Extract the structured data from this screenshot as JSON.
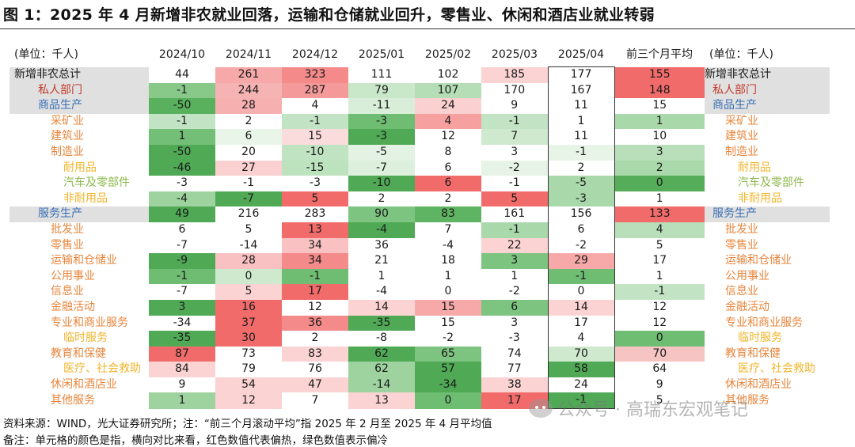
{
  "title": "图 1：2025 年 4 月新增非农就业回落，运输和仓储就业回升，零售业、休闲和酒店业就业转弱",
  "unit_label": "(单位：千人)",
  "columns": [
    "2024/10",
    "2024/11",
    "2024/12",
    "2025/01",
    "2025/02",
    "2025/03",
    "2025/04",
    "前三个月平均"
  ],
  "rows": [
    {
      "label": "新增非农总计",
      "level": 0,
      "color": "black",
      "gray": true,
      "values": [
        "44",
        "261",
        "323",
        "111",
        "102",
        "185",
        "177",
        "155"
      ],
      "cells": [
        "#ffffff",
        "#f7a9a9",
        "#f48a8a",
        "#ffffff",
        "#ffffff",
        "#fbd3d3",
        "#ffffff",
        "#f26b6b"
      ]
    },
    {
      "label": "私人部门",
      "level": 1,
      "color": "red",
      "gray": true,
      "values": [
        "-1",
        "244",
        "287",
        "79",
        "107",
        "170",
        "167",
        "148"
      ],
      "cells": [
        "#88c98a",
        "#f6b3b3",
        "#f59a9a",
        "#c9e7c9",
        "#b5deb6",
        "#ffffff",
        "#ffffff",
        "#f26b6b"
      ]
    },
    {
      "label": "商品生产",
      "level": 1,
      "color": "blue",
      "gray": true,
      "values": [
        "-50",
        "28",
        "4",
        "-11",
        "24",
        "9",
        "11",
        "15"
      ],
      "cells": [
        "#59b15d",
        "#f7b0b0",
        "#ffffff",
        "#d8eed8",
        "#fbd0d0",
        "#ffffff",
        "#ffffff",
        "#ffffff"
      ]
    },
    {
      "label": "采矿业",
      "level": 2,
      "color": "orange",
      "gray": false,
      "values": [
        "-1",
        "2",
        "-1",
        "-3",
        "4",
        "-1",
        "1",
        "1"
      ],
      "cells": [
        "#c3e4c4",
        "#ffffff",
        "#c3e4c4",
        "#6fbd73",
        "#f7a0a0",
        "#c3e4c4",
        "#ffffff",
        "#a9d8aa"
      ]
    },
    {
      "label": "建筑业",
      "level": 2,
      "color": "orange",
      "gray": false,
      "values": [
        "1",
        "6",
        "15",
        "-3",
        "12",
        "7",
        "11",
        "10"
      ],
      "cells": [
        "#74bf77",
        "#eaf5ea",
        "#fbdcdc",
        "#4fa955",
        "#ffffff",
        "#cfe9cf",
        "#ffffff",
        "#ffffff"
      ]
    },
    {
      "label": "制造业",
      "level": 2,
      "color": "orange",
      "gray": false,
      "values": [
        "-50",
        "20",
        "-10",
        "-5",
        "8",
        "3",
        "-1",
        "3"
      ],
      "cells": [
        "#4fa955",
        "#ffffff",
        "#c0e3c1",
        "#e3f2e3",
        "#ffffff",
        "#ffffff",
        "#e8f4e8",
        "#b8dfb9"
      ]
    },
    {
      "label": "耐用品",
      "level": 3,
      "color": "yellow",
      "gray": false,
      "values": [
        "-46",
        "27",
        "-15",
        "-7",
        "6",
        "-2",
        "2",
        "2"
      ],
      "cells": [
        "#4fa955",
        "#fbd0d0",
        "#bde2be",
        "#ddf0dd",
        "#ffffff",
        "#e6f3e6",
        "#ffffff",
        "#a9d8aa"
      ]
    },
    {
      "label": "汽车及零部件",
      "level": 4,
      "color": "green",
      "gray": false,
      "values": [
        "-3",
        "-1",
        "-3",
        "-10",
        "6",
        "-1",
        "-5",
        "0"
      ],
      "cells": [
        "#ffffff",
        "#ffffff",
        "#ffffff",
        "#4fa955",
        "#f26b6b",
        "#ffffff",
        "#a9d8aa",
        "#55ad5a"
      ]
    },
    {
      "label": "非耐用品",
      "level": 3,
      "color": "yellow",
      "gray": false,
      "values": [
        "-4",
        "-7",
        "5",
        "2",
        "2",
        "5",
        "-3",
        "1"
      ],
      "cells": [
        "#9ed39f",
        "#4fa955",
        "#f26b6b",
        "#ffffff",
        "#ffffff",
        "#f26b6b",
        "#a9d8aa",
        "#ffffff"
      ]
    },
    {
      "label": "服务生产",
      "level": 1,
      "color": "blue",
      "gray": true,
      "values": [
        "49",
        "216",
        "283",
        "90",
        "83",
        "161",
        "156",
        "133"
      ],
      "cells": [
        "#4fa955",
        "#ffffff",
        "#ffffff",
        "#7cc47f",
        "#5fb463",
        "#ffffff",
        "#ffffff",
        "#f26b6b"
      ]
    },
    {
      "label": "批发业",
      "level": 2,
      "color": "orange",
      "gray": false,
      "values": [
        "6",
        "5",
        "13",
        "-4",
        "7",
        "-1",
        "6",
        "4"
      ],
      "cells": [
        "#ffffff",
        "#ffffff",
        "#f26b6b",
        "#4fa955",
        "#ffffff",
        "#a9d8aa",
        "#ffffff",
        "#b8dfb9"
      ]
    },
    {
      "label": "零售业",
      "level": 2,
      "color": "orange",
      "gray": false,
      "values": [
        "-7",
        "-14",
        "34",
        "36",
        "-4",
        "22",
        "-2",
        "5"
      ],
      "cells": [
        "#ffffff",
        "#ffffff",
        "#f9c1c1",
        "#ffffff",
        "#ffffff",
        "#fbd3d3",
        "#ffffff",
        "#ffffff"
      ]
    },
    {
      "label": "运输和仓储业",
      "level": 2,
      "color": "orange",
      "gray": false,
      "values": [
        "-9",
        "28",
        "34",
        "21",
        "18",
        "3",
        "29",
        "17"
      ],
      "cells": [
        "#4fa955",
        "#f9c1c1",
        "#f48a8a",
        "#ffffff",
        "#ffffff",
        "#7cc47f",
        "#f7a9a9",
        "#ffffff"
      ]
    },
    {
      "label": "公用事业",
      "level": 2,
      "color": "orange",
      "gray": false,
      "values": [
        "-1",
        "0",
        "-1",
        "1",
        "1",
        "1",
        "-1",
        "1"
      ],
      "cells": [
        "#6fbd73",
        "#cfe9cf",
        "#6fbd73",
        "#ffffff",
        "#ffffff",
        "#ffffff",
        "#6fbd73",
        "#ffffff"
      ]
    },
    {
      "label": "信息业",
      "level": 2,
      "color": "orange",
      "gray": false,
      "values": [
        "-7",
        "5",
        "17",
        "-4",
        "0",
        "-2",
        "0",
        "-1"
      ],
      "cells": [
        "#ffffff",
        "#fbd3d3",
        "#f26b6b",
        "#ffffff",
        "#ffffff",
        "#ffffff",
        "#ffffff",
        "#c3e4c4"
      ]
    },
    {
      "label": "金融活动",
      "level": 2,
      "color": "orange",
      "gray": false,
      "values": [
        "3",
        "16",
        "12",
        "14",
        "15",
        "6",
        "14",
        "12"
      ],
      "cells": [
        "#4fa955",
        "#f26b6b",
        "#ffffff",
        "#fbd3d3",
        "#f7a9a9",
        "#7cc47f",
        "#fbd3d3",
        "#ffffff"
      ]
    },
    {
      "label": "专业和商业服务",
      "level": 2,
      "color": "orange",
      "gray": false,
      "values": [
        "-34",
        "37",
        "36",
        "-35",
        "15",
        "3",
        "17",
        "12"
      ],
      "cells": [
        "#ffffff",
        "#f26b6b",
        "#f48a8a",
        "#4fa955",
        "#ffffff",
        "#ffffff",
        "#ffffff",
        "#ffffff"
      ]
    },
    {
      "label": "临时服务",
      "level": 3,
      "color": "yellow",
      "gray": false,
      "values": [
        "-35",
        "30",
        "2",
        "-8",
        "-2",
        "-3",
        "4",
        "0"
      ],
      "cells": [
        "#4fa955",
        "#f26b6b",
        "#ffffff",
        "#ffffff",
        "#ffffff",
        "#ffffff",
        "#ffffff",
        "#6fbd73"
      ]
    },
    {
      "label": "教育和保健",
      "level": 2,
      "color": "orange",
      "gray": false,
      "values": [
        "87",
        "73",
        "83",
        "62",
        "65",
        "74",
        "70",
        "70"
      ],
      "cells": [
        "#f26b6b",
        "#ffffff",
        "#fbd3d3",
        "#4fa955",
        "#7cc47f",
        "#ffffff",
        "#cfe9cf",
        "#f7c4c4"
      ]
    },
    {
      "label": "医疗、社会救助",
      "level": 3,
      "color": "yellow",
      "gray": false,
      "values": [
        "84",
        "79",
        "76",
        "62",
        "57",
        "77",
        "58",
        "64"
      ],
      "cells": [
        "#fbd3d3",
        "#ffffff",
        "#ffffff",
        "#9ed39f",
        "#4fa955",
        "#ffffff",
        "#4fa955",
        "#ffffff"
      ]
    },
    {
      "label": "休闲和酒店业",
      "level": 2,
      "color": "orange",
      "gray": false,
      "values": [
        "9",
        "54",
        "47",
        "-14",
        "-34",
        "38",
        "24",
        "9"
      ],
      "cells": [
        "#ffffff",
        "#fbd3d3",
        "#fbd3d3",
        "#9ed39f",
        "#4fa955",
        "#fbd3d3",
        "#ffffff",
        "#ffffff"
      ]
    },
    {
      "label": "其他服务",
      "level": 2,
      "color": "orange",
      "gray": false,
      "values": [
        "1",
        "12",
        "7",
        "13",
        "0",
        "17",
        "-1",
        "5"
      ],
      "cells": [
        "#9ed39f",
        "#fbd3d3",
        "#ffffff",
        "#fbd3d3",
        "#6fbd73",
        "#f26b6b",
        "#4fa955",
        "#ffffff"
      ]
    }
  ],
  "footer_source": "资料来源：WIND，光大证券研究所；注：“前三个月滚动平均”指 2025 年 2 月至 2025 年 4 月平均值",
  "footer_note": "备注：单元格的颜色是指，横向对比来看，红色数值代表偏热，绿色数值表示偏冷",
  "watermark": "公众号 · 高瑞东宏观笔记",
  "watermark_icon": "wechat-icon"
}
